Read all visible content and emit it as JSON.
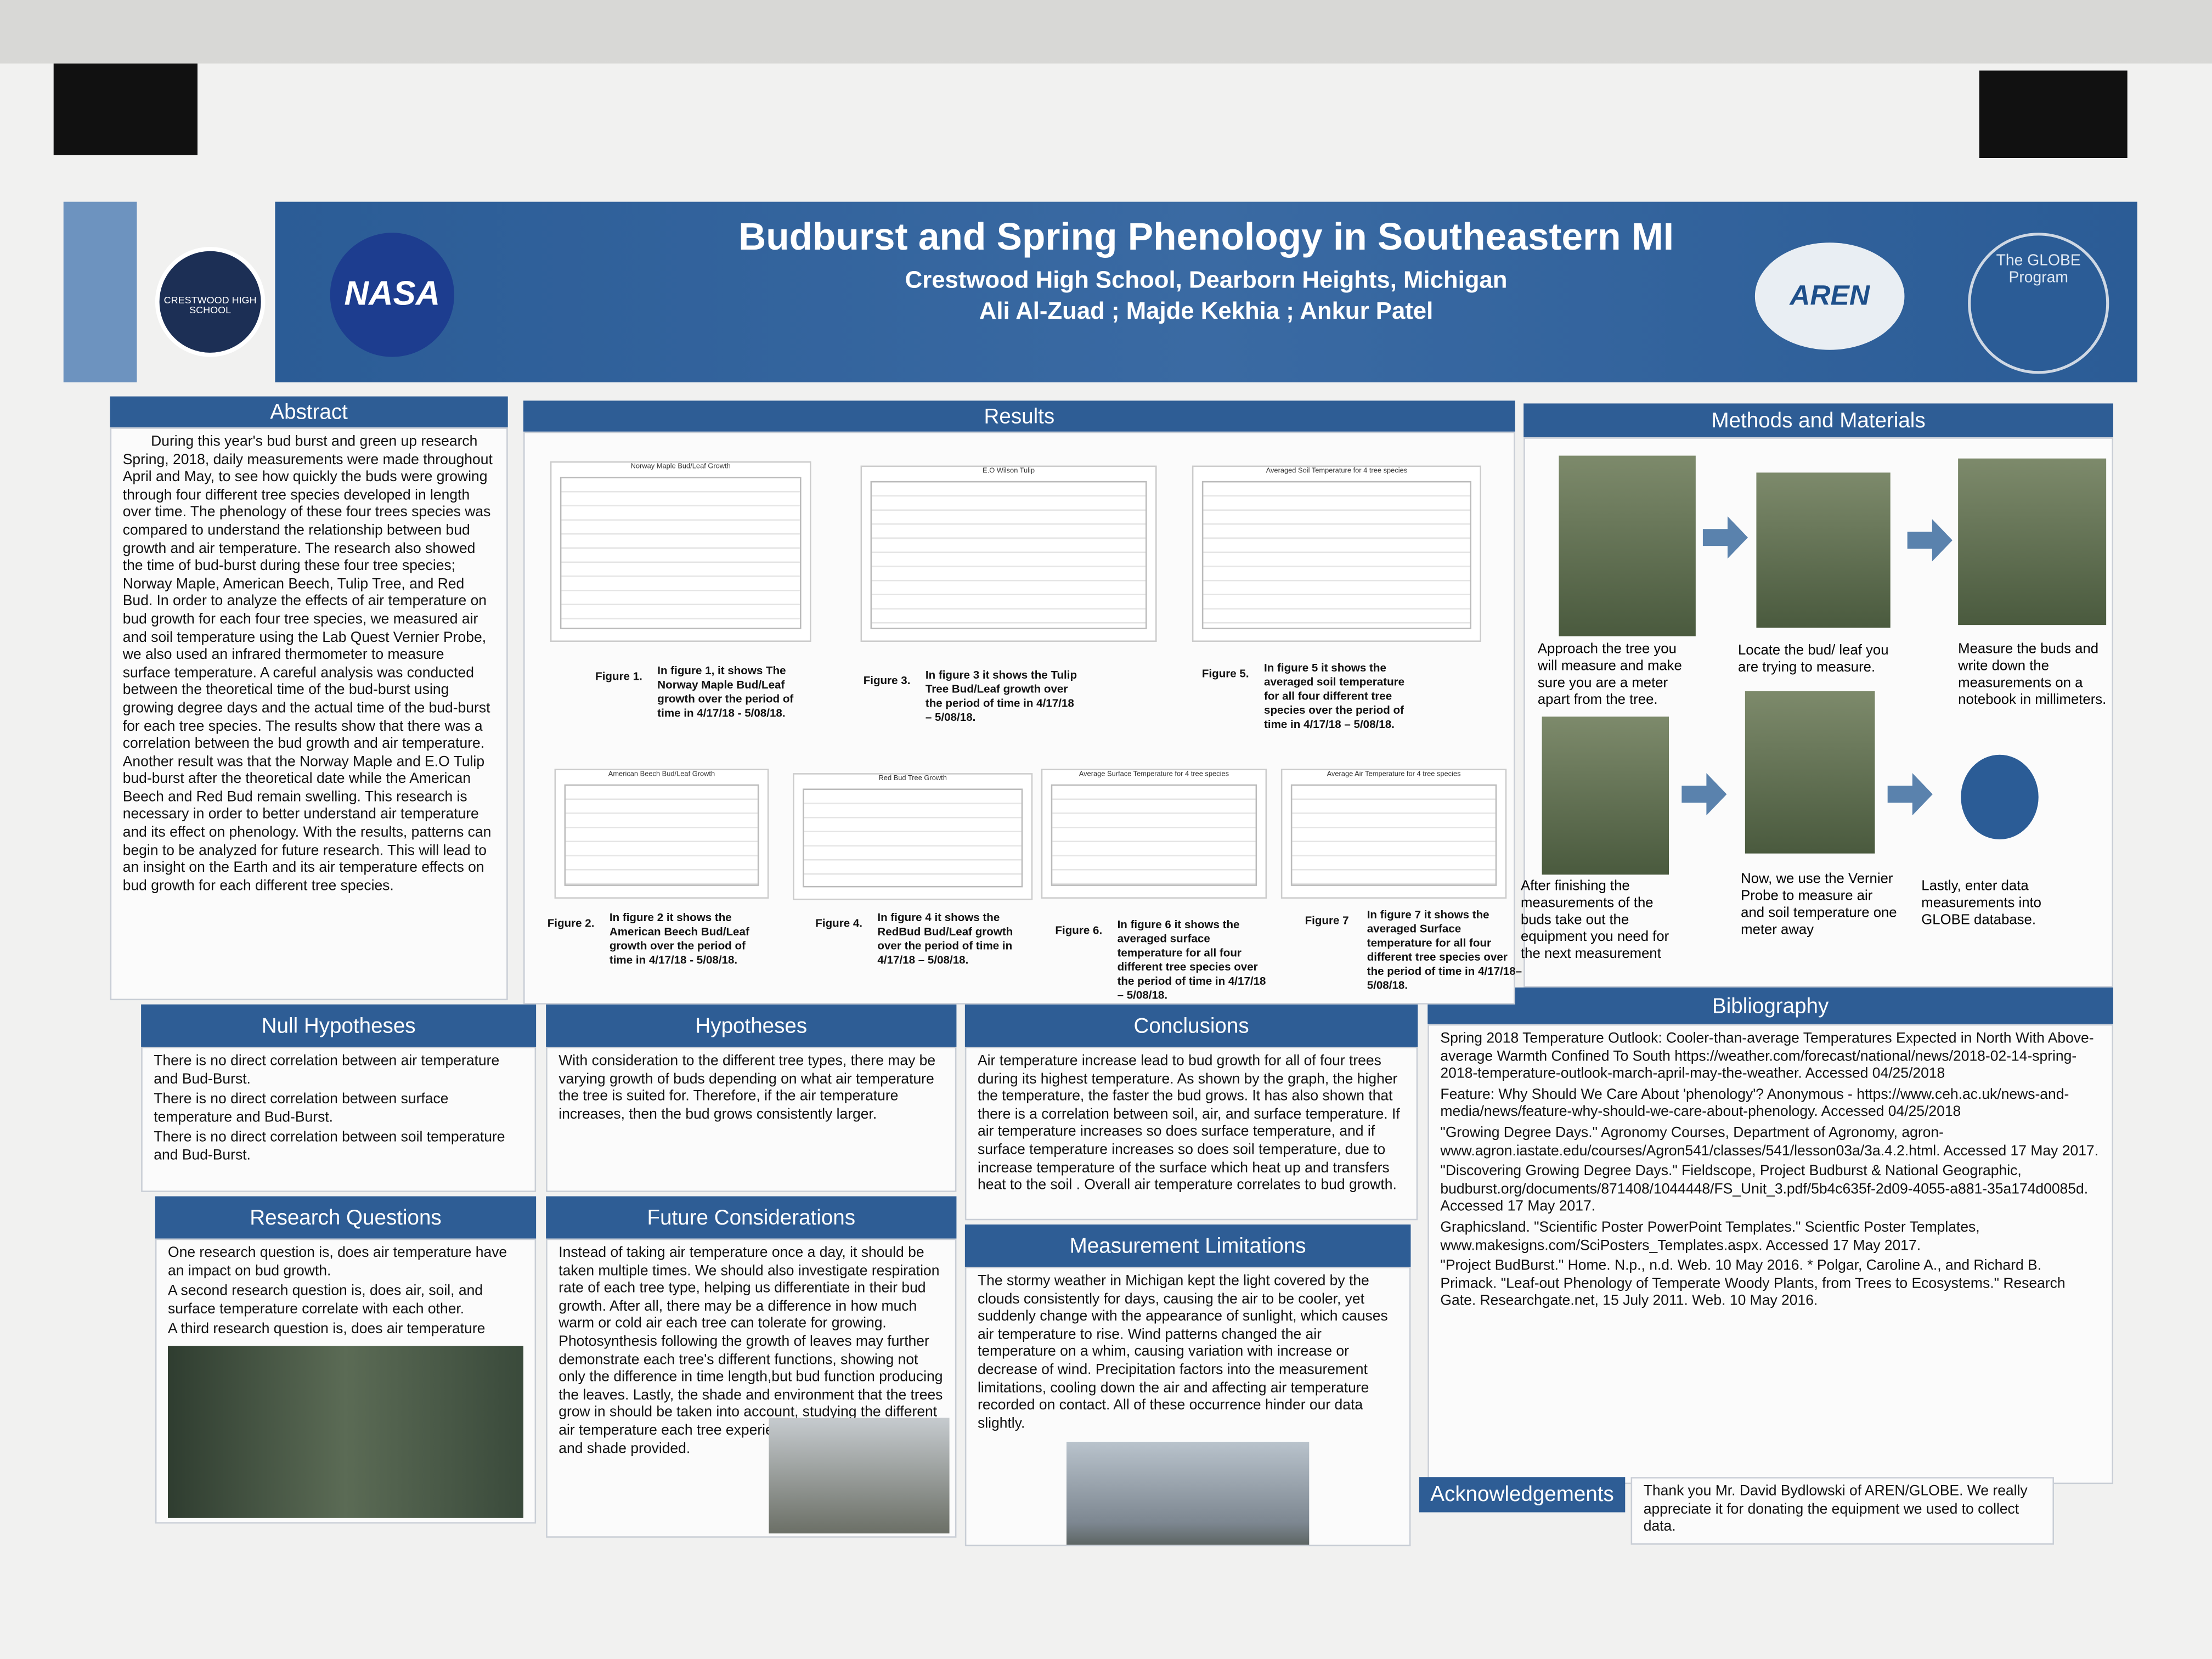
{
  "header": {
    "title": "Budburst and Spring Phenology in Southeastern MI",
    "school": "Crestwood High School, Dearborn Heights, Michigan",
    "authors": "Ali Al-Zuad ; Majde Kekhia ; Ankur Patel"
  },
  "logos": {
    "left": "CRESTWOOD HIGH SCHOOL",
    "nasa": "NASA",
    "aren": "AREN",
    "globe": "The GLOBE Program"
  },
  "abstract": {
    "heading": "Abstract",
    "text": "During this year's bud burst and green up research Spring, 2018, daily measurements were made throughout April and May, to see how quickly the buds were growing through four different tree species developed in length over time. The phenology of these four trees species was compared to understand the relationship between bud growth and air temperature. The research also showed the time of bud-burst during these four tree species; Norway Maple, American Beech, Tulip Tree, and Red Bud. In order to analyze the effects of air temperature on bud growth for each four tree species, we measured air and soil temperature using the Lab Quest Vernier Probe, we also used an infrared thermometer to measure surface temperature. A careful analysis was conducted between the theoretical time of the bud-burst using growing degree days and the actual time of the bud-burst for each tree species. The results show that there was a correlation between the bud growth and air temperature. Another result was that the Norway Maple and E.O Tulip bud-burst after the theoretical date while the American Beech and Red Bud remain swelling. This research is necessary in order to better understand air temperature and its effect on phenology. With the results, patterns can begin to be analyzed for future research. This will lead to an insight on the Earth and its air temperature effects on bud growth for each different tree species."
  },
  "results": {
    "heading": "Results",
    "figures": [
      {
        "label": "Figure 1.",
        "title": "Norway Maple Bud/Leaf Growth",
        "caption": "In figure 1, it shows The Norway Maple Bud/Leaf growth over the period of time in 4/17/18 - 5/08/18."
      },
      {
        "label": "Figure 3.",
        "title": "E.O Wilson Tulip",
        "caption": "In figure 3 it shows the Tulip Tree Bud/Leaf growth over the period of time in 4/17/18 – 5/08/18."
      },
      {
        "label": "Figure 5.",
        "title": "Averaged Soil Temperature for 4 tree species",
        "caption": "In figure 5 it shows the averaged soil temperature for all four different tree species over the period of time in 4/17/18 – 5/08/18."
      },
      {
        "label": "Figure 2.",
        "title": "American Beech Bud/Leaf Growth",
        "caption": "In figure 2 it shows the American Beech Bud/Leaf growth over the period of time in 4/17/18 - 5/08/18."
      },
      {
        "label": "Figure 4.",
        "title": "Red Bud Tree Growth",
        "caption": "In figure 4 it shows the RedBud Bud/Leaf growth over the period of time in 4/17/18 – 5/08/18."
      },
      {
        "label": "Figure 6.",
        "title": "Average Surface Temperature for 4 tree species",
        "caption": "In figure 6 it shows the averaged surface temperature for all four different tree species over the period of time in 4/17/18 – 5/08/18."
      },
      {
        "label": "Figure 7",
        "title": "Average Air Temperature for 4 tree species",
        "caption": "In figure 7 it shows the averaged Surface temperature for all four different tree species over the period of time in 4/17/18–5/08/18."
      }
    ]
  },
  "methods": {
    "heading": "Methods and Materials",
    "steps": [
      "Approach the tree you will measure and make sure you are a meter apart from the tree.",
      "Locate the bud/ leaf you are trying to measure.",
      "Measure the buds and write down the measurements on a notebook in millimeters.",
      "After finishing the measurements of the buds take out the equipment you need for the next measurement",
      "Now, we use the Vernier Probe to measure air and soil temperature one meter away",
      "Lastly, enter data measurements into GLOBE database."
    ]
  },
  "null_hypotheses": {
    "heading": "Null Hypotheses",
    "items": [
      "There is no direct correlation between air temperature and Bud-Burst.",
      "There is no direct correlation between surface temperature and Bud-Burst.",
      "There is no direct correlation between soil temperature and Bud-Burst."
    ]
  },
  "hypotheses": {
    "heading": "Hypotheses",
    "items": [
      "With consideration to the different tree types, there may be varying growth of buds depending on what air temperature the tree is suited for. Therefore, if the air temperature increases, then the bud grows consistently larger."
    ]
  },
  "conclusions": {
    "heading": "Conclusions",
    "items": [
      "Air temperature increase lead to bud growth for all of four trees during its highest temperature. As shown by the graph, the higher the temperature, the faster the bud grows. It has also shown that there is a correlation between soil, air, and surface temperature. If air temperature increases so does surface temperature, and if surface temperature increases so does soil temperature, due to increase temperature of the surface which heat up and transfers heat to the soil . Overall air temperature correlates to bud growth."
    ]
  },
  "research_questions": {
    "heading": "Research Questions",
    "items": [
      "One research question is, does air temperature have an impact on bud growth.",
      "A second research question is, does air, soil, and surface temperature correlate with each other.",
      "A third research question is, does air temperature"
    ]
  },
  "future": {
    "heading": "Future Considerations",
    "items": [
      "Instead of taking air temperature once a day, it should be taken multiple times. We should also investigate respiration rate of each tree type, helping us differentiate in their bud growth. After all, there may be a difference in how much warm or cold air each tree can tolerate for growing. Photosynthesis following the growth of leaves may further demonstrate each tree's different functions, showing not only the difference in time length,but bud function producing the leaves. Lastly, the shade and environment that the trees grow in should be taken into account, studying the different air temperature each tree experienced based on location and shade provided."
    ]
  },
  "limitations": {
    "heading": "Measurement Limitations",
    "items": [
      "The stormy weather in Michigan kept the light covered by the clouds consistently for days, causing the air to be cooler, yet suddenly change with the appearance of sunlight, which causes air temperature to rise. Wind patterns changed the air temperature on a whim, causing variation with increase or decrease of wind. Precipitation factors into the measurement limitations, cooling down the air and affecting air temperature recorded on contact. All of these occurrence hinder our data slightly."
    ]
  },
  "bibliography": {
    "heading": "Bibliography",
    "items": [
      "Spring 2018 Temperature Outlook: Cooler-than-average Temperatures Expected in North With Above-average Warmth Confined To South https://weather.com/forecast/national/news/2018-02-14-spring-2018-temperature-outlook-march-april-may-the-weather. Accessed 04/25/2018",
      "Feature: Why Should We Care About 'phenology'? Anonymous - https://www.ceh.ac.uk/news-and-media/news/feature-why-should-we-care-about-phenology. Accessed 04/25/2018",
      "\"Growing Degree Days.\" Agronomy Courses, Department of Agronomy, agron-www.agron.iastate.edu/courses/Agron541/classes/541/lesson03a/3a.4.2.html. Accessed 17 May 2017.",
      "\"Discovering Growing Degree Days.\" Fieldscope, Project Budburst & National Geographic, budburst.org/documents/871408/1044448/FS_Unit_3.pdf/5b4c635f-2d09-4055-a881-35a174d0085d. Accessed 17 May 2017.",
      "Graphicsland. \"Scientific Poster PowerPoint Templates.\" Scientfic Poster Templates, www.makesigns.com/SciPosters_Templates.aspx. Accessed 17 May 2017.",
      "\"Project BudBurst.\" Home. N.p., n.d. Web. 10 May 2016. * Polgar, Caroline A., and Richard B. Primack. \"Leaf-out Phenology of Temperate Woody Plants, from Trees to Ecosystems.\" Research Gate. Researchgate.net, 15 July 2011. Web. 10 May 2016."
    ]
  },
  "acknowledgements": {
    "heading": "Acknowledgements",
    "text": "Thank you Mr. David Bydlowski of AREN/GLOBE. We really appreciate it for donating the equipment we used to collect data."
  }
}
